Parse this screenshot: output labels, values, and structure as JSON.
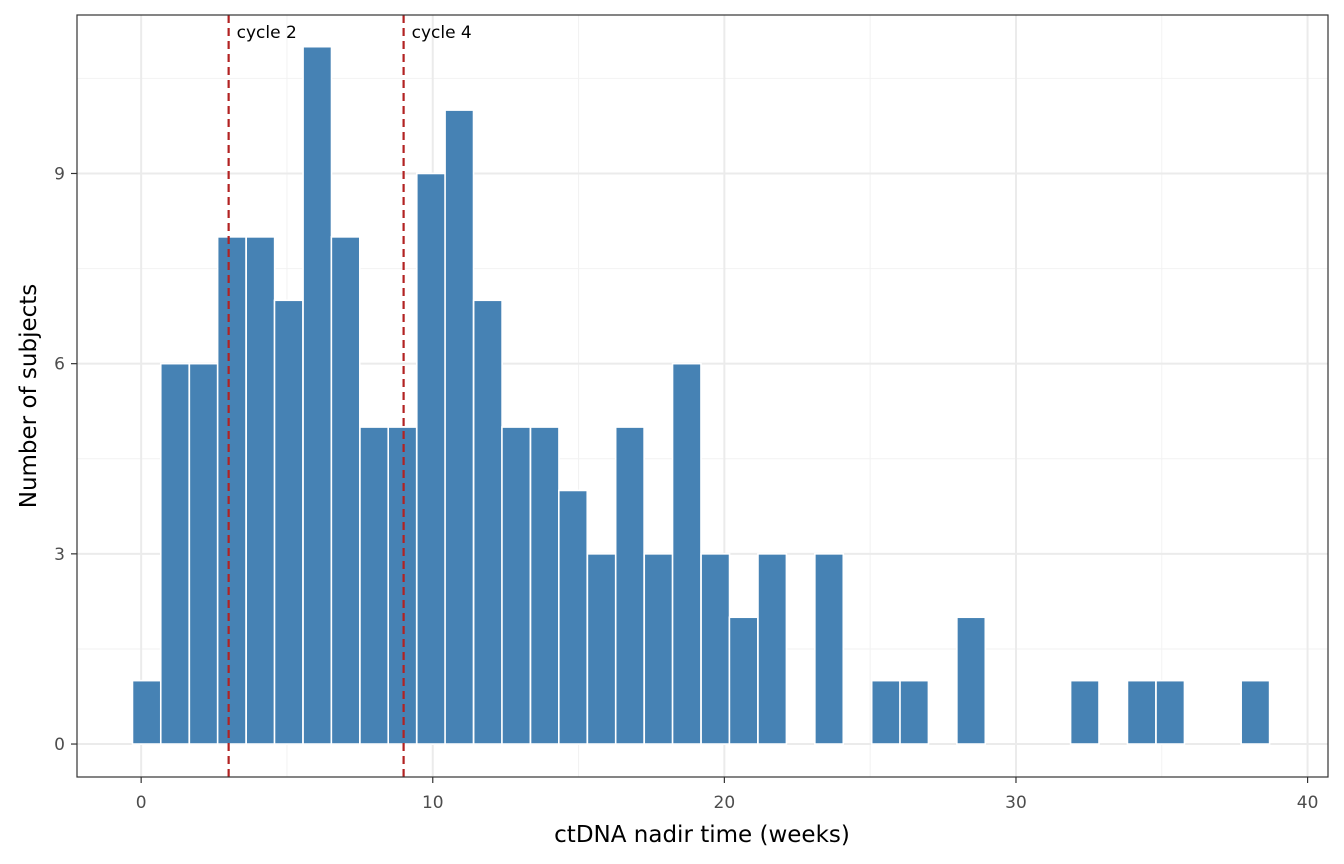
{
  "chart_data": {
    "type": "bar",
    "xlabel": "ctDNA nadir time (weeks)",
    "ylabel": "Number of subjects",
    "xlim": [
      -2.2,
      40.7
    ],
    "ylim": [
      -0.52,
      11.5
    ],
    "x_ticks": [
      0,
      10,
      20,
      30,
      40
    ],
    "y_ticks": [
      0,
      3,
      6,
      9
    ],
    "bin_width": 0.975,
    "bins": [
      {
        "x": 0.19,
        "value": 1
      },
      {
        "x": 1.16,
        "value": 6
      },
      {
        "x": 2.14,
        "value": 6
      },
      {
        "x": 3.11,
        "value": 8
      },
      {
        "x": 4.09,
        "value": 8
      },
      {
        "x": 5.06,
        "value": 7
      },
      {
        "x": 6.04,
        "value": 11
      },
      {
        "x": 7.01,
        "value": 8
      },
      {
        "x": 7.99,
        "value": 5
      },
      {
        "x": 8.96,
        "value": 5
      },
      {
        "x": 9.94,
        "value": 9
      },
      {
        "x": 10.91,
        "value": 10
      },
      {
        "x": 11.89,
        "value": 7
      },
      {
        "x": 12.86,
        "value": 5
      },
      {
        "x": 13.84,
        "value": 5
      },
      {
        "x": 14.81,
        "value": 4
      },
      {
        "x": 15.79,
        "value": 3
      },
      {
        "x": 16.76,
        "value": 5
      },
      {
        "x": 17.74,
        "value": 3
      },
      {
        "x": 18.71,
        "value": 6
      },
      {
        "x": 19.69,
        "value": 3
      },
      {
        "x": 20.66,
        "value": 2
      },
      {
        "x": 21.64,
        "value": 3
      },
      {
        "x": 23.59,
        "value": 3
      },
      {
        "x": 25.54,
        "value": 1
      },
      {
        "x": 26.51,
        "value": 1
      },
      {
        "x": 28.46,
        "value": 2
      },
      {
        "x": 32.36,
        "value": 1
      },
      {
        "x": 34.31,
        "value": 1
      },
      {
        "x": 35.29,
        "value": 1
      },
      {
        "x": 38.21,
        "value": 1
      }
    ],
    "vlines": [
      {
        "x": 3,
        "label": "cycle 2"
      },
      {
        "x": 9,
        "label": "cycle 4"
      }
    ],
    "grid": true,
    "colors": {
      "bar_fill": "#4682b4",
      "bar_edge": "#ffffff",
      "vline": "#b22222",
      "grid_major": "#ebebeb",
      "grid_minor": "#f2f2f2",
      "panel_border": "#333333"
    }
  }
}
